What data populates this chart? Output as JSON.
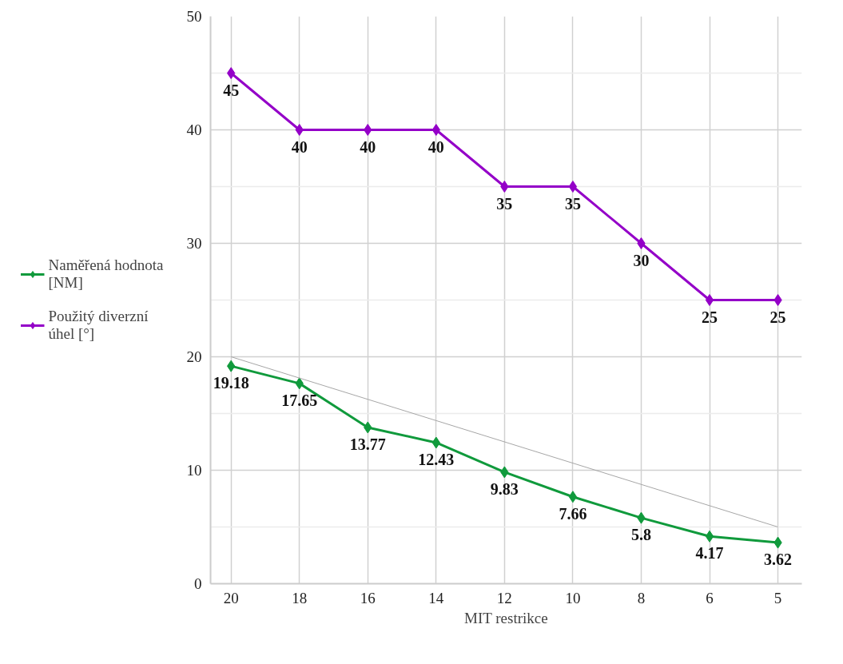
{
  "chart_data": {
    "type": "line",
    "xlabel": "MIT restrikce",
    "categories": [
      "20",
      "18",
      "16",
      "14",
      "12",
      "10",
      "8",
      "6",
      "5"
    ],
    "ylim": [
      0,
      50
    ],
    "yticks": [
      0,
      {
        "value": 5,
        "label": null
      },
      10,
      {
        "value": 15,
        "label": null
      },
      20,
      {
        "value": 25,
        "label": null
      },
      30,
      {
        "value": 35,
        "label": null
      },
      40,
      {
        "value": 45,
        "label": null
      },
      50
    ],
    "grid": true,
    "legend": "left",
    "marker": "diamond",
    "line_style": "solid",
    "series": [
      {
        "name": "Naměřená hodnota [NM]",
        "color": "#109a3c",
        "values": [
          19.18,
          17.65,
          13.77,
          12.43,
          9.83,
          7.66,
          5.8,
          4.17,
          3.62
        ],
        "value_labels": [
          "19.18",
          "17.65",
          "13.77",
          "12.43",
          "9.83",
          "7.66",
          "5.8",
          "4.17",
          "3.62"
        ]
      },
      {
        "name": "Použitý diverzní úhel [°]",
        "color": "#9400c8",
        "values": [
          45,
          40,
          40,
          40,
          35,
          35,
          30,
          25,
          25
        ],
        "value_labels": [
          "45",
          "40",
          "40",
          "40",
          "35",
          "35",
          "30",
          "25",
          "25"
        ]
      },
      {
        "type": "line",
        "color": "#a6a6a6",
        "x": [
          "20",
          "5"
        ],
        "values": [
          20,
          5
        ],
        "marker": "none"
      }
    ]
  }
}
